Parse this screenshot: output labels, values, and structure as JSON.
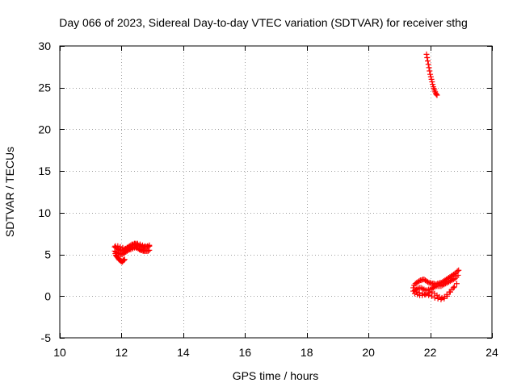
{
  "chart_data": {
    "type": "scatter",
    "title": "Day 066 of 2023, Sidereal Day-to-day VTEC variation (SDTVAR) for receiver sthg",
    "xlabel": "GPS time / hours",
    "ylabel": "SDTVAR / TECUs",
    "xlim": [
      10,
      24
    ],
    "ylim": [
      -5,
      30
    ],
    "xticks": [
      10,
      12,
      14,
      16,
      18,
      20,
      22,
      24
    ],
    "yticks": [
      -5,
      0,
      5,
      10,
      15,
      20,
      25,
      30
    ],
    "grid": true,
    "marker": "plus",
    "color": "#ff0000",
    "series": [
      {
        "x": [
          11.8,
          11.82,
          11.84,
          11.86,
          11.88,
          11.9,
          11.92,
          11.94,
          11.96,
          11.98,
          12.0,
          12.02,
          12.04,
          12.06,
          12.08,
          12.1,
          11.78,
          11.82,
          11.86,
          11.9,
          11.94,
          11.98,
          12.02,
          12.06,
          12.1,
          12.14,
          12.18,
          12.22,
          12.26,
          12.3,
          12.34,
          12.38,
          12.42,
          12.46,
          12.5,
          12.54,
          12.58,
          12.62,
          12.66,
          12.7,
          12.74,
          12.78,
          12.82,
          12.86,
          12.9,
          11.78,
          11.82,
          11.86,
          11.9,
          11.94,
          11.98,
          12.02,
          12.06,
          12.1,
          12.14,
          12.18,
          12.22,
          12.26,
          12.3,
          12.34,
          12.38,
          12.42,
          12.46,
          12.5,
          12.54,
          12.58,
          12.62,
          12.66,
          12.7,
          12.74,
          12.78,
          12.82,
          12.86,
          12.9,
          11.8,
          11.88,
          11.96,
          12.04,
          12.12,
          12.2,
          12.28,
          12.36,
          12.44,
          12.52,
          12.6,
          12.68,
          12.76,
          12.84,
          12.9,
          12.3,
          12.36,
          12.42,
          12.48,
          12.54,
          12.6,
          12.66,
          12.72,
          21.88,
          21.9,
          21.92,
          21.94,
          21.96,
          21.98,
          22.0,
          22.02,
          22.04,
          22.06,
          22.08,
          22.1,
          22.12,
          22.14,
          22.16,
          22.18,
          22.2,
          22.22,
          21.45,
          21.48,
          21.52,
          21.56,
          21.6,
          21.64,
          21.68,
          21.72,
          21.76,
          21.8,
          21.84,
          21.88,
          21.92,
          21.96,
          22.0,
          22.04,
          22.08,
          22.12,
          22.16,
          22.2,
          22.24,
          22.28,
          22.32,
          22.36,
          22.4,
          22.44,
          22.48,
          22.52,
          22.56,
          22.6,
          22.64,
          22.68,
          22.72,
          22.76,
          22.8,
          22.84,
          22.88,
          22.92,
          21.45,
          21.5,
          21.55,
          21.6,
          21.65,
          21.7,
          21.75,
          21.8,
          21.85,
          21.9,
          21.95,
          22.0,
          22.05,
          22.1,
          22.15,
          22.2,
          22.25,
          22.3,
          22.35,
          22.4,
          22.45,
          22.5,
          22.55,
          22.6,
          22.65,
          22.7,
          22.75,
          22.8,
          22.85,
          22.9,
          21.5,
          21.58,
          21.66,
          21.74,
          21.82,
          21.9,
          21.98,
          22.06,
          22.14,
          22.22,
          22.3,
          22.38,
          22.46,
          22.54,
          22.62,
          22.7,
          22.78,
          22.86,
          21.55,
          21.65,
          21.75,
          21.85,
          21.95,
          22.05,
          22.15,
          22.25,
          22.35,
          22.45,
          22.55,
          22.65,
          22.75
        ],
        "y": [
          5.1,
          4.9,
          4.8,
          4.7,
          4.6,
          4.5,
          4.4,
          4.3,
          4.3,
          4.2,
          4.2,
          4.1,
          4.2,
          4.3,
          4.3,
          4.4,
          5.9,
          5.8,
          5.7,
          5.6,
          5.5,
          5.5,
          5.4,
          5.5,
          5.6,
          5.7,
          5.8,
          5.9,
          6.0,
          6.1,
          6.2,
          6.2,
          6.3,
          6.3,
          6.2,
          6.1,
          6.0,
          6.0,
          5.9,
          5.9,
          5.9,
          5.9,
          5.9,
          5.9,
          6.0,
          5.4,
          5.3,
          5.2,
          5.1,
          5.1,
          5.0,
          5.0,
          5.1,
          5.2,
          5.3,
          5.4,
          5.5,
          5.6,
          5.7,
          5.8,
          5.9,
          5.9,
          5.9,
          5.8,
          5.7,
          5.6,
          5.5,
          5.5,
          5.4,
          5.4,
          5.4,
          5.4,
          5.4,
          5.5,
          6.0,
          6.0,
          5.9,
          5.8,
          5.7,
          5.8,
          5.9,
          6.1,
          6.2,
          6.3,
          6.2,
          6.1,
          6.0,
          6.0,
          6.1,
          5.6,
          5.7,
          5.8,
          5.8,
          5.7,
          5.6,
          5.6,
          5.5,
          29.0,
          28.6,
          28.2,
          27.8,
          27.4,
          27.0,
          26.6,
          26.3,
          26.0,
          25.7,
          25.4,
          25.1,
          24.9,
          24.7,
          24.5,
          24.3,
          24.2,
          24.1,
          1.0,
          1.3,
          1.5,
          1.6,
          1.7,
          1.8,
          1.9,
          1.9,
          2.0,
          2.0,
          1.9,
          1.8,
          1.7,
          1.6,
          1.6,
          1.5,
          1.5,
          1.5,
          1.4,
          1.4,
          1.5,
          1.5,
          1.6,
          1.6,
          1.7,
          1.8,
          1.9,
          2.0,
          2.1,
          2.2,
          2.3,
          2.4,
          2.5,
          2.6,
          2.7,
          2.8,
          3.0,
          3.1,
          0.6,
          0.7,
          0.8,
          0.9,
          1.0,
          1.0,
          0.9,
          0.8,
          0.7,
          0.7,
          0.8,
          0.8,
          0.9,
          1.0,
          1.1,
          1.2,
          1.2,
          1.2,
          1.2,
          1.3,
          1.4,
          1.5,
          1.6,
          1.7,
          1.8,
          1.9,
          2.0,
          2.1,
          2.3,
          2.5,
          0.3,
          0.2,
          0.1,
          0.1,
          0.2,
          0.3,
          0.4,
          0.5,
          0.3,
          0.1,
          -0.1,
          -0.2,
          -0.1,
          0.2,
          0.5,
          0.8,
          1.1,
          1.5,
          0.5,
          0.4,
          0.3,
          0.2,
          0.1,
          0.0,
          -0.2,
          -0.3,
          -0.4,
          -0.3,
          0.0,
          0.5,
          1.0
        ]
      }
    ]
  }
}
